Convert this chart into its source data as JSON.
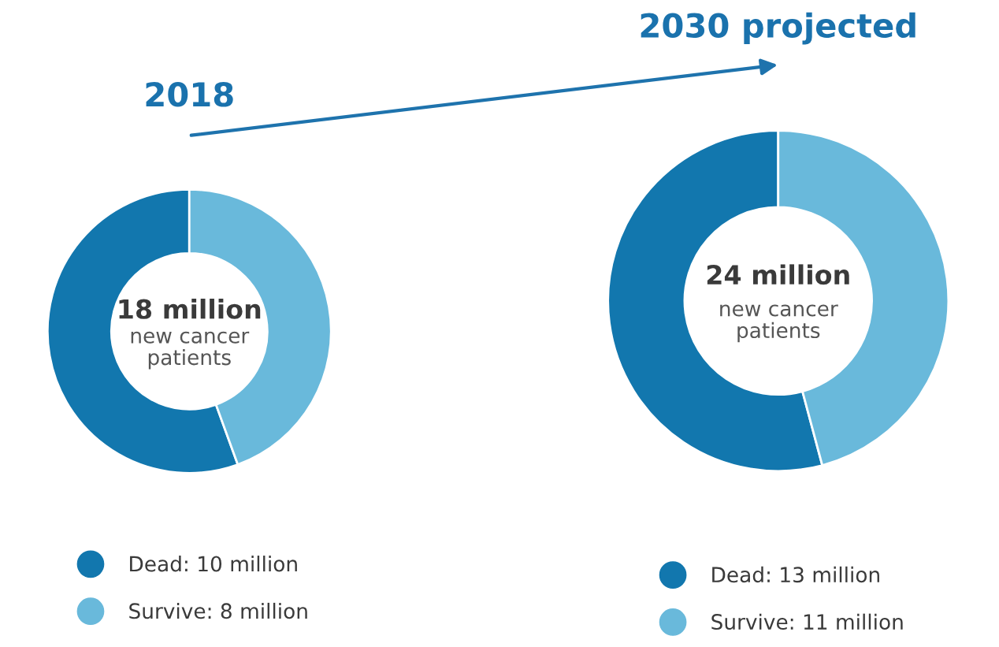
{
  "chart_data": [
    {
      "type": "donut",
      "title": "2018",
      "categories": [
        "Dead: 10 million",
        "Survive: 8 million"
      ],
      "values": [
        10,
        8
      ],
      "colors": [
        "#1277ae",
        "#69b9db"
      ],
      "annotations": [
        "18 million",
        "new cancer patients"
      ],
      "legend": "bottom"
    },
    {
      "type": "donut",
      "title": "2030 projected",
      "categories": [
        "Dead: 13 million",
        "Survive: 11 million"
      ],
      "values": [
        13,
        11
      ],
      "colors": [
        "#1277ae",
        "#69b9db"
      ],
      "annotations": [
        "24 million",
        "new cancer patients"
      ],
      "legend": "bottom"
    }
  ]
}
